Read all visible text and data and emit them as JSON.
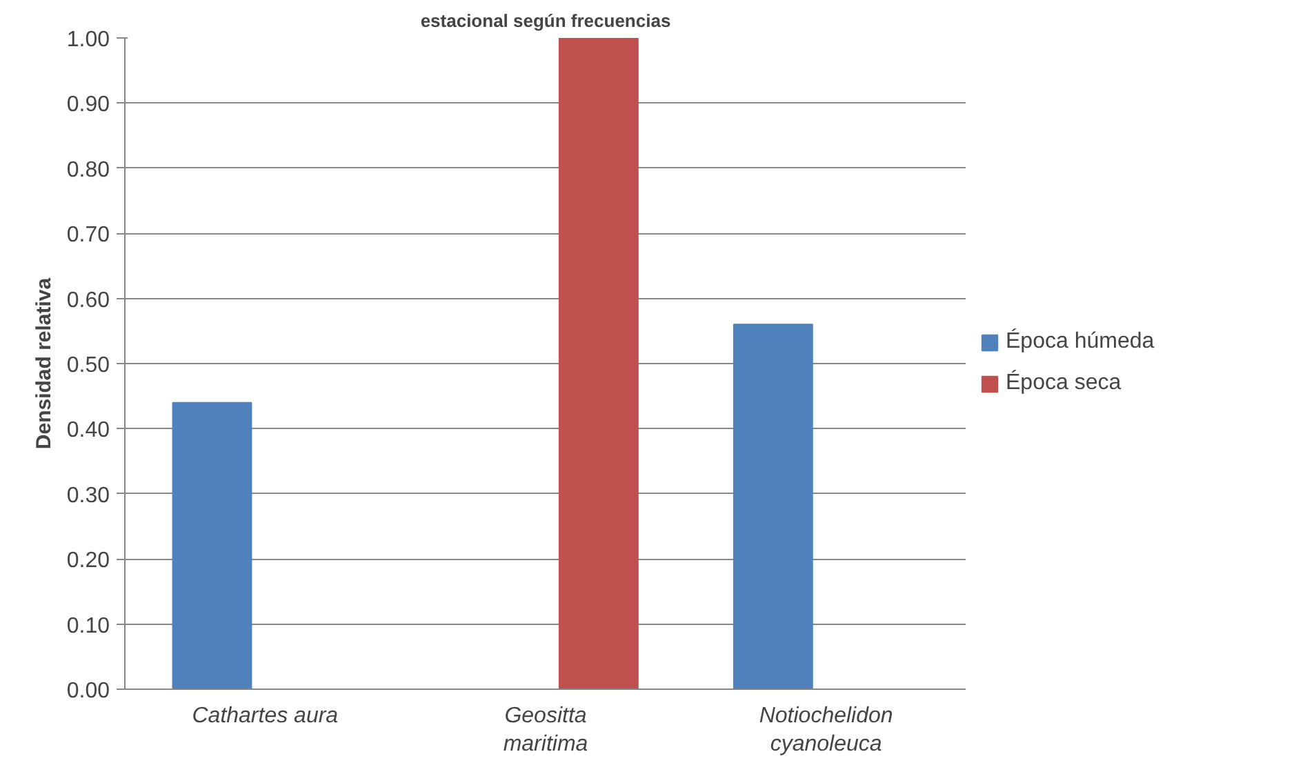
{
  "chart_data": {
    "type": "bar",
    "title": "estacional según frecuencias",
    "ylabel": "Densidad relativa",
    "categories": [
      "Cathartes aura",
      "Geositta maritima",
      "Notiochelidon cyanoleuca"
    ],
    "series": [
      {
        "name": "Época húmeda",
        "color": "#4f81bd",
        "values": [
          0.44,
          null,
          0.56
        ]
      },
      {
        "name": "Época seca",
        "color": "#c0504d",
        "values": [
          null,
          1.0,
          null
        ]
      }
    ],
    "ylim": [
      0,
      1
    ],
    "yticks": [
      {
        "value": 0,
        "label": "0.00"
      },
      {
        "value": 0.1,
        "label": "0.10"
      },
      {
        "value": 0.2,
        "label": "0.20"
      },
      {
        "value": 0.3,
        "label": "0.30"
      },
      {
        "value": 0.4,
        "label": "0.40"
      },
      {
        "value": 0.5,
        "label": "0.50"
      },
      {
        "value": 0.6,
        "label": "0.60"
      },
      {
        "value": 0.7,
        "label": "0.70"
      },
      {
        "value": 0.8,
        "label": "0.80"
      },
      {
        "value": 0.9,
        "label": "0.90"
      },
      {
        "value": 1,
        "label": "1.00"
      }
    ],
    "grid": "y",
    "legend": "right"
  }
}
